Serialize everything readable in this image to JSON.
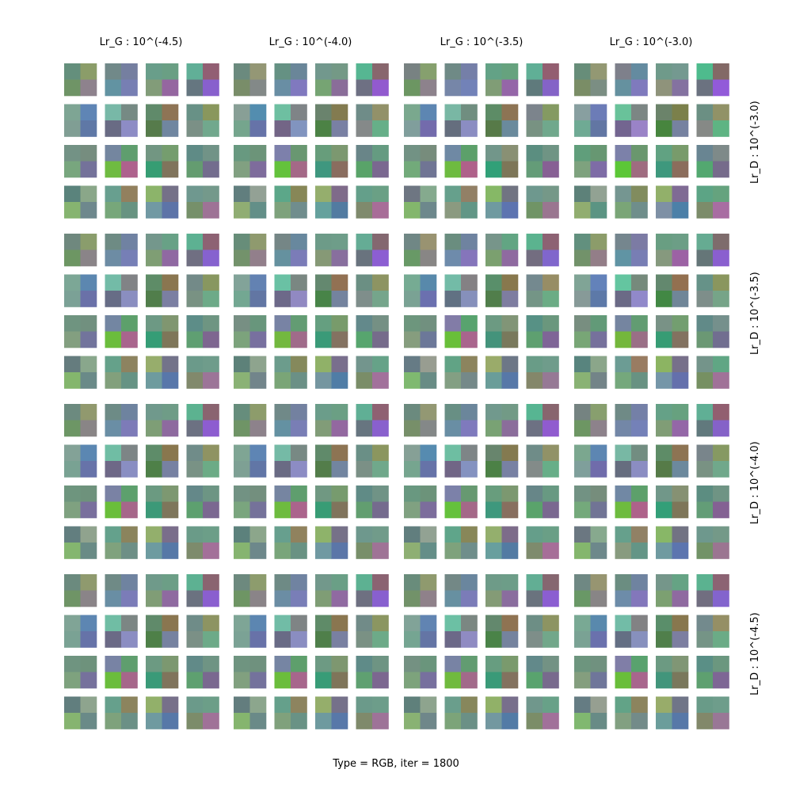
{
  "chart_data": {
    "type": "heatmap",
    "title": "Type = RGB, iter = 1800",
    "col_titles": [
      "Lr_G : 10^(-4.5)",
      "Lr_G : 10^(-4.0)",
      "Lr_G : 10^(-3.5)",
      "Lr_G : 10^(-3.0)"
    ],
    "row_titles": [
      "Lr_D : 10^(-3.0)",
      "Lr_D : 10^(-3.5)",
      "Lr_D : 10^(-4.0)",
      "Lr_D : 10^(-4.5)"
    ],
    "patterns": [
      [
        [
          "#6b8a7e",
          "#8f9a6e",
          "#6f9466",
          "#8a8488"
        ],
        [
          "#6f8a86",
          "#6f83a0",
          "#698ea4",
          "#7b7cb8"
        ],
        [
          "#6f9a8a",
          "#6c9e86",
          "#809d76",
          "#8f6aa0"
        ],
        [
          "#5db192",
          "#8a6470",
          "#6b7280",
          "#8a5fcf"
        ]
      ],
      [
        [
          "#80a496",
          "#5d86b2",
          "#7aa294",
          "#6673a8"
        ],
        [
          "#70bda4",
          "#7c8684",
          "#6b6a86",
          "#8b8dc2"
        ],
        [
          "#608a6a",
          "#8a7650",
          "#4e8048",
          "#7682a0"
        ],
        [
          "#6f8c88",
          "#8d9462",
          "#7b9086",
          "#6daa88"
        ]
      ],
      [
        [
          "#6f9480",
          "#6e927c",
          "#7ea27e",
          "#76719c"
        ],
        [
          "#7883a4",
          "#5f9e6e",
          "#6bbd3c",
          "#a6678a"
        ],
        [
          "#6c9a82",
          "#7c9870",
          "#3a9a78",
          "#80745c"
        ],
        [
          "#618a88",
          "#6f9484",
          "#5ea070",
          "#7a6890"
        ]
      ],
      [
        [
          "#617e7e",
          "#8ea48e",
          "#86b470",
          "#6a8a88"
        ],
        [
          "#66a08c",
          "#8c845e",
          "#7ea27c",
          "#6b9086"
        ],
        [
          "#92b06a",
          "#77708a",
          "#6f9aa0",
          "#5778a8"
        ],
        [
          "#6b9a8a",
          "#6c9e88",
          "#7c8c6a",
          "#a07298"
        ]
      ]
    ],
    "variant_notes": "16 panels, each a 4x4 grid of 2x2 colour filters"
  }
}
